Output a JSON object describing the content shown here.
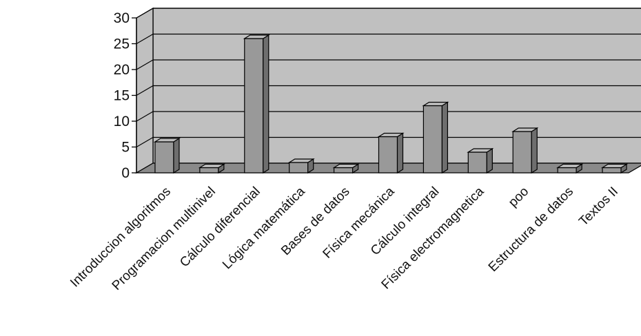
{
  "chart_data": {
    "type": "bar",
    "title": "",
    "xlabel": "",
    "ylabel": "",
    "categories": [
      "Introduccion algoritmos",
      "Programacion multinivel",
      "Cálculo diferencial",
      "Lógica matemática",
      "Bases de datos",
      "Física mecánica",
      "Cálculo integral",
      "Física electromagnetica",
      "poo",
      "Estructura de datos",
      "Textos II"
    ],
    "values": [
      6,
      1,
      26,
      2,
      1,
      7,
      13,
      4,
      8,
      1,
      1
    ],
    "ylim": [
      0,
      30
    ],
    "yticks": [
      0,
      5,
      10,
      15,
      20,
      25,
      30
    ],
    "grid": true,
    "legend": "none",
    "style": "3d-column",
    "colors": {
      "wall": "#c0c0c0",
      "floor": "#8a8a8a",
      "bar_front": "#999999",
      "bar_side": "#6e6e6e",
      "bar_top": "#bdbdbd",
      "outline": "#000000"
    }
  }
}
